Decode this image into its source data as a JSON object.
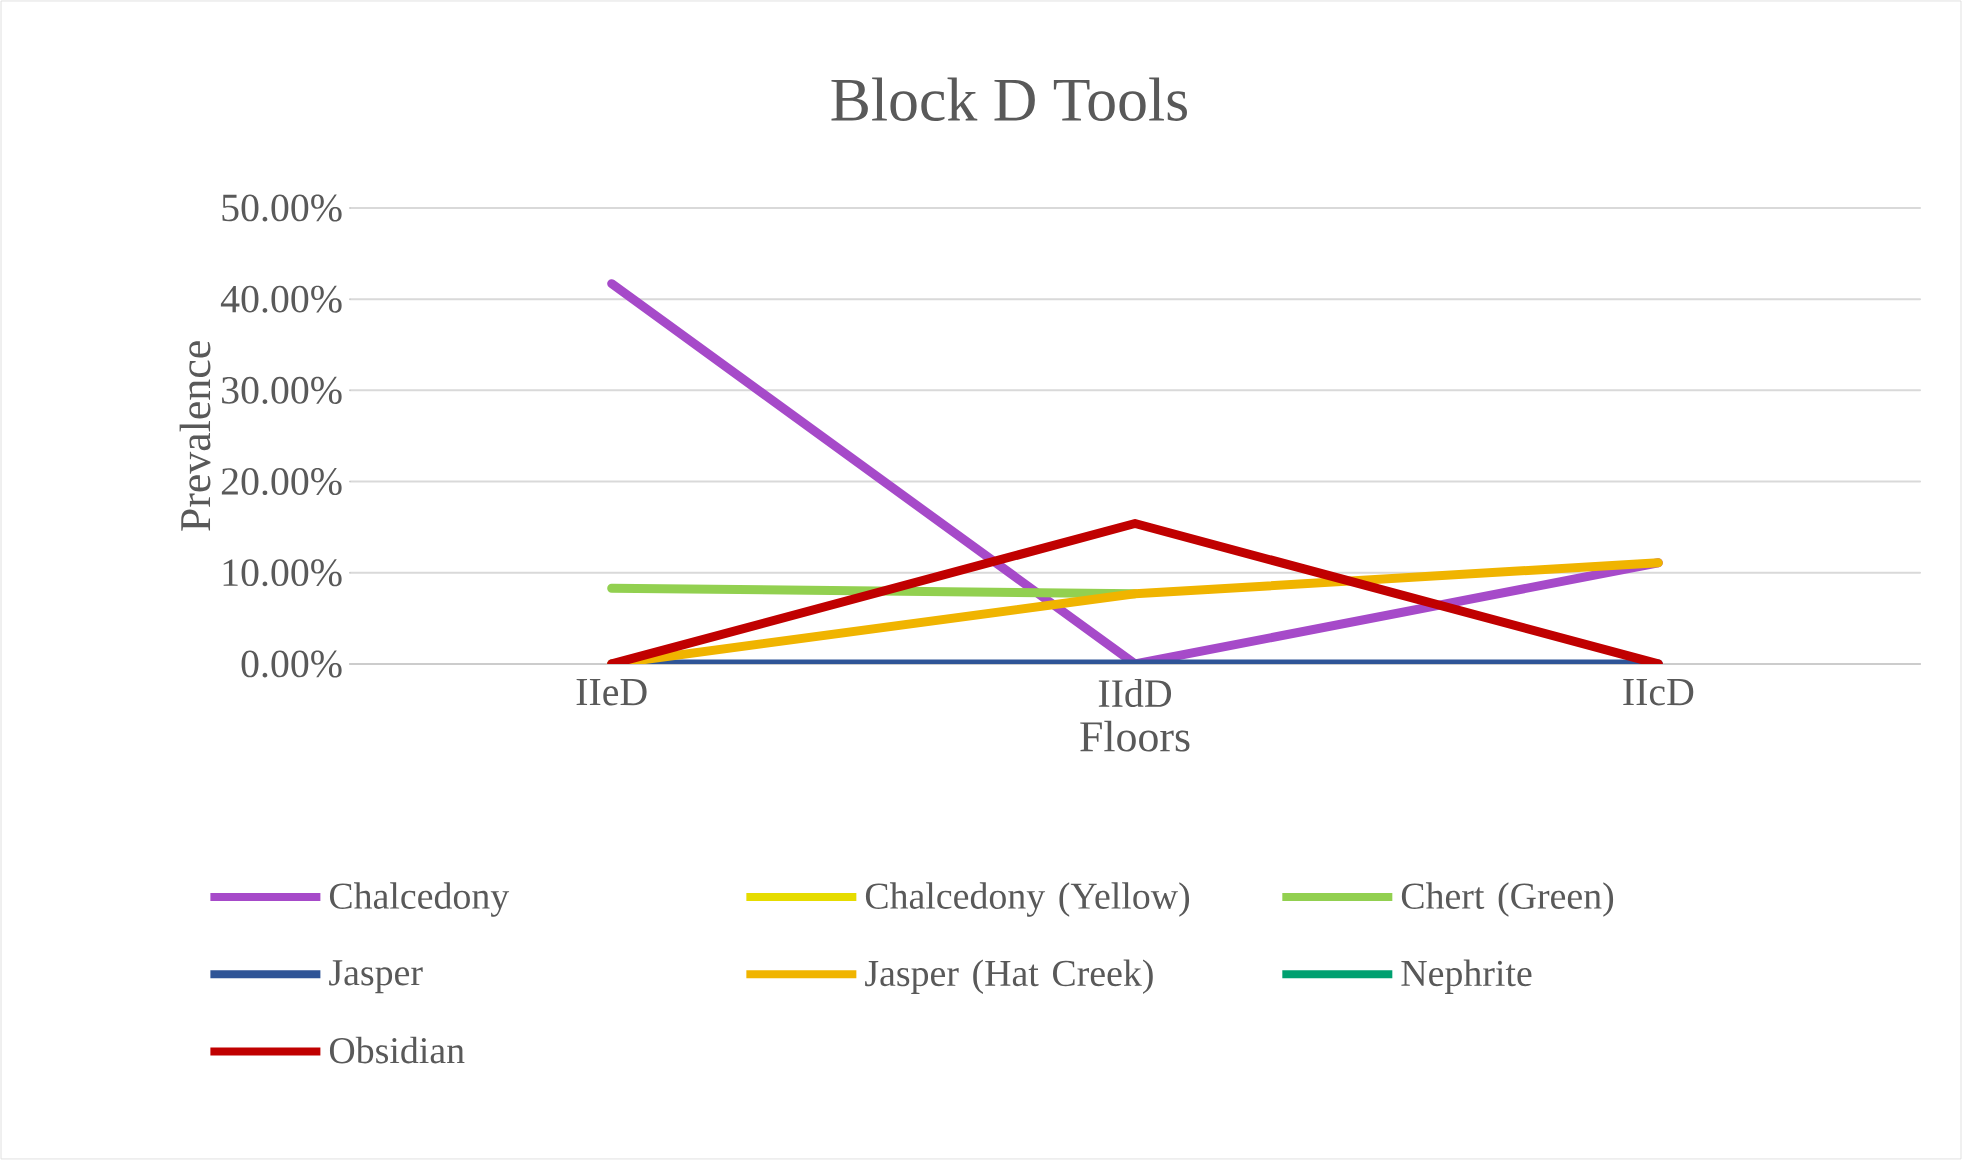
{
  "chart_data": {
    "type": "line",
    "title": "Block D Tools",
    "xlabel": "Floors",
    "ylabel": "Prevalence",
    "categories": [
      "IIeD",
      "IIdD",
      "IIcD"
    ],
    "series": [
      {
        "name": "Chalcedony",
        "color": "#a64ac9",
        "values": [
          41.7,
          0,
          11.1
        ]
      },
      {
        "name": "Chalcedony (Yellow)",
        "color": "#e6dc00",
        "values": [
          null,
          null,
          null
        ]
      },
      {
        "name": "Chert (Green)",
        "color": "#92d050",
        "values": [
          8.3,
          7.7,
          null
        ]
      },
      {
        "name": "Jasper",
        "color": "#2f5597",
        "values": [
          0,
          0,
          0
        ]
      },
      {
        "name": "Jasper (Hat Creek)",
        "color": "#f0b400",
        "values": [
          0,
          7.7,
          11.1
        ]
      },
      {
        "name": "Nephrite",
        "color": "#00a070",
        "values": [
          null,
          null,
          null
        ]
      },
      {
        "name": "Obsidian",
        "color": "#c00000",
        "values": [
          0,
          15.4,
          0
        ]
      }
    ],
    "ylim": [
      0,
      50
    ],
    "yticks": [
      {
        "value": 0,
        "label": "0.00%"
      },
      {
        "value": 10,
        "label": "10.00%"
      },
      {
        "value": 20,
        "label": "20.00%"
      },
      {
        "value": 30,
        "label": "30.00%"
      },
      {
        "value": 40,
        "label": "40.00%"
      },
      {
        "value": 50,
        "label": "50.00%"
      }
    ],
    "grid": "y",
    "legend": "bottom",
    "marker": "none",
    "line_style": "solid"
  }
}
